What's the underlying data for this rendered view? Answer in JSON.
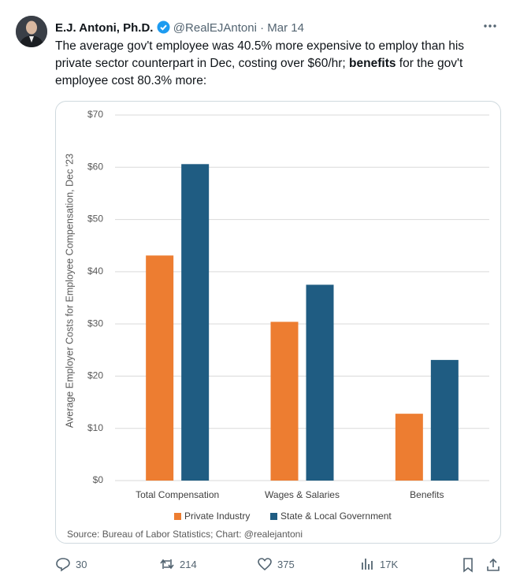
{
  "tweet": {
    "author": "E.J. Antoni, Ph.D.",
    "handle": "@RealEJAntoni",
    "date": "Mar 14",
    "text_parts": [
      "The average gov't employee was 40.5% more expensive to employ than his private sector counterpart in Dec, costing over $60/hr; ",
      "benefits",
      " for the gov't employee cost 80.3% more:"
    ],
    "replies": "30",
    "reposts": "214",
    "likes": "375",
    "views": "17K"
  },
  "chart_data": {
    "type": "bar",
    "y_label": "Average Employer Costs for Employee Compensation, Dec '23",
    "categories": [
      "Total Compensation",
      "Wages & Salaries",
      "Benefits"
    ],
    "series": [
      {
        "name": "Private Industry",
        "color": "#ed7d31",
        "values": [
          43.1,
          30.4,
          12.8
        ]
      },
      {
        "name": "State & Local Government",
        "color": "#1f5c82",
        "values": [
          60.6,
          37.5,
          23.1
        ]
      }
    ],
    "ylim": [
      0,
      70
    ],
    "yticks": [
      {
        "value": 0,
        "label": "$0"
      },
      {
        "value": 10,
        "label": "$10"
      },
      {
        "value": 20,
        "label": "$20"
      },
      {
        "value": 30,
        "label": "$30"
      },
      {
        "value": 40,
        "label": "$40"
      },
      {
        "value": 50,
        "label": "$50"
      },
      {
        "value": 60,
        "label": "$60"
      },
      {
        "value": 70,
        "label": "$70"
      }
    ],
    "grid": true,
    "legend": "bottom",
    "source": "Source: Bureau of Labor Statistics; Chart: @realejantoni"
  }
}
